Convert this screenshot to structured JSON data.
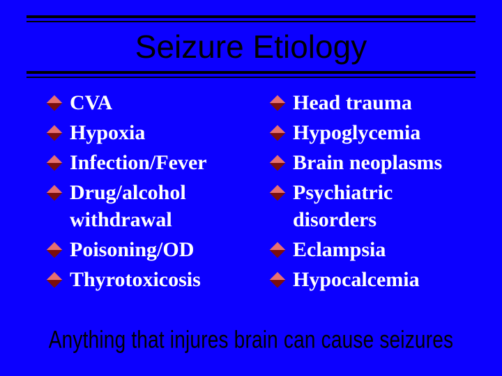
{
  "slide": {
    "title": "Seizure Etiology",
    "footer": "Anything that injures brain can cause seizures",
    "background_color": "#0c00ff",
    "title_color": "#000000",
    "title_fontsize": 46,
    "title_font": "Arial",
    "body_color": "#ffffff",
    "body_fontsize": 30,
    "body_font": "Times New Roman",
    "footer_color": "#000000",
    "footer_fontsize": 28,
    "footer_font": "Arial",
    "rule_color": "#000000",
    "bullet_shape": "diamond",
    "bullet_light": "#e77070",
    "bullet_dark": "#7a0e0e",
    "left_items": [
      "CVA",
      "Hypoxia",
      "Infection/Fever",
      "Drug/alcohol withdrawal",
      "Poisoning/OD",
      "Thyrotoxicosis"
    ],
    "right_items": [
      "Head trauma",
      "Hypoglycemia",
      "Brain neoplasms",
      "Psychiatric disorders",
      "Eclampsia",
      "Hypocalcemia"
    ]
  }
}
